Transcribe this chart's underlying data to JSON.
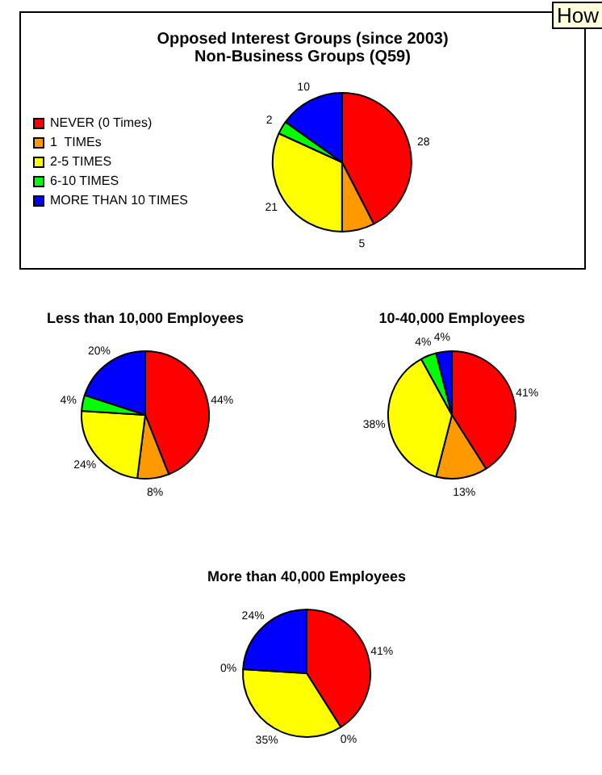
{
  "chart_data": [
    {
      "type": "pie",
      "title": "Opposed Interest Groups (since 2003)",
      "subtitle": "Non-Business Groups (Q59)",
      "categories": [
        "NEVER (0 Times)",
        "1  TIMEs",
        "2-5 TIMES",
        "6-10 TIMES",
        "MORE THAN 10 TIMES"
      ],
      "values": [
        28,
        5,
        21,
        2,
        10
      ],
      "colors": [
        "#ff0000",
        "#ff9900",
        "#ffff00",
        "#00ff00",
        "#0000ff"
      ],
      "data_labels": true,
      "legend": "left",
      "annotations": [
        "How"
      ]
    },
    {
      "type": "pie",
      "title": "Less than 10,000 Employees",
      "categories": [
        null,
        null,
        null,
        null,
        null
      ],
      "values": [
        44,
        8,
        24,
        4,
        20
      ],
      "colors": [
        "#ff0000",
        "#ff9900",
        "#ffff00",
        "#00ff00",
        "#0000ff"
      ],
      "value_labels": [
        "44%",
        "8%",
        "24%",
        "4%",
        "20%"
      ]
    },
    {
      "type": "pie",
      "title": "10-40,000 Employees",
      "categories": [
        null,
        null,
        null,
        null,
        null
      ],
      "values": [
        41,
        13,
        38,
        4,
        4
      ],
      "colors": [
        "#ff0000",
        "#ff9900",
        "#ffff00",
        "#00ff00",
        "#0000ff"
      ],
      "value_labels": [
        "41%",
        "13%",
        "38%",
        "4%",
        "4%"
      ]
    },
    {
      "type": "pie",
      "title": "More than 40,000 Employees",
      "categories": [
        null,
        null,
        null,
        null,
        null
      ],
      "values": [
        41,
        0,
        35,
        0,
        24
      ],
      "colors": [
        "#ff0000",
        "#ff9900",
        "#ffff00",
        "#00ff00",
        "#0000ff"
      ],
      "value_labels": [
        "41%",
        "0%",
        "35%",
        "0%",
        "24%"
      ]
    }
  ]
}
